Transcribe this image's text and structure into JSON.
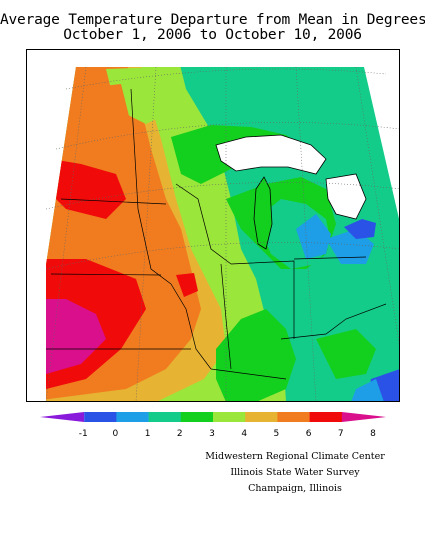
{
  "title_line1": "Average Temperature Departure from Mean in Degrees F",
  "title_line2": "October 1, 2006 to October 10, 2006",
  "legend": {
    "ticks": [
      "-1",
      "0",
      "1",
      "2",
      "3",
      "4",
      "5",
      "6",
      "7",
      "8"
    ],
    "colors": [
      "#8a1adb",
      "#2a52e6",
      "#1d9ee6",
      "#14cc8a",
      "#13cf1e",
      "#9be63a",
      "#e6b332",
      "#f07c1f",
      "#f00a0a",
      "#d90f8c"
    ]
  },
  "credits": {
    "line1": "Midwestern Regional Climate Center",
    "line2": "Illinois State Water Survey",
    "line3": "Champaign, Illinois"
  }
}
